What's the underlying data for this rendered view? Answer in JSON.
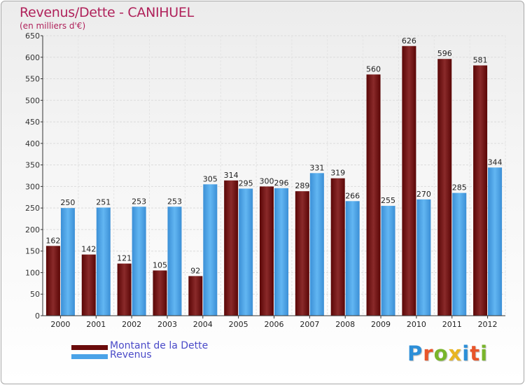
{
  "header": {
    "title": "Revenus/Dette - CANIHUEL",
    "subtitle": "(en milliers d'€)"
  },
  "legend": {
    "items": [
      {
        "label": "Montant de la Dette",
        "color": "#6b0c0c"
      },
      {
        "label": "Revenus",
        "color": "#4aa3e8"
      }
    ]
  },
  "logo": {
    "text": "Proxiti",
    "letters": [
      {
        "char": "P",
        "color": "#2c8fd8"
      },
      {
        "char": "r",
        "color": "#e8552a"
      },
      {
        "char": "o",
        "color": "#79b52b"
      },
      {
        "char": "x",
        "color": "#e8b522"
      },
      {
        "char": "i",
        "color": "#2c8fd8"
      },
      {
        "char": "t",
        "color": "#e8552a"
      },
      {
        "char": "i",
        "color": "#79b52b"
      }
    ]
  },
  "chart_data": {
    "type": "bar",
    "categories": [
      "2000",
      "2001",
      "2002",
      "2003",
      "2004",
      "2005",
      "2006",
      "2007",
      "2008",
      "2009",
      "2010",
      "2011",
      "2012"
    ],
    "series": [
      {
        "name": "Montant de la Dette",
        "color": "#6b0c0c",
        "values": [
          162,
          142,
          121,
          105,
          92,
          314,
          300,
          289,
          319,
          560,
          626,
          596,
          581
        ]
      },
      {
        "name": "Revenus",
        "color": "#4aa3e8",
        "values": [
          250,
          251,
          253,
          253,
          305,
          295,
          296,
          331,
          266,
          255,
          270,
          285,
          344
        ]
      }
    ],
    "ylim": [
      0,
      650
    ],
    "yticks": [
      0,
      50,
      100,
      150,
      200,
      250,
      300,
      350,
      400,
      450,
      500,
      550,
      600,
      650
    ],
    "grid": true
  }
}
